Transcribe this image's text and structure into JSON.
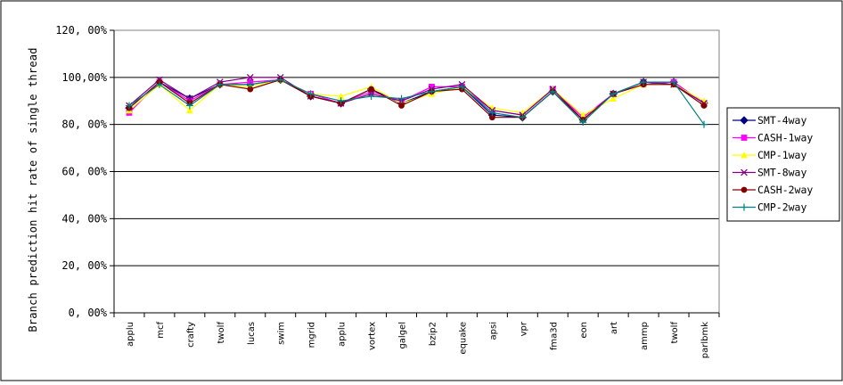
{
  "chart_data": {
    "type": "line",
    "title": "",
    "xlabel": "",
    "ylabel": "Branch prediction hit rate of single thread",
    "ylim": [
      0,
      120
    ],
    "y_ticks": [
      "0, 00%",
      "20, 00%",
      "40, 00%",
      "60, 00%",
      "80, 00%",
      "100,00%",
      "120, 00%"
    ],
    "y_tick_values": [
      0,
      20,
      40,
      60,
      80,
      100,
      120
    ],
    "grid": "horizontal major gridlines",
    "legend_position": "right",
    "categories": [
      "applu",
      "mcf",
      "crafty",
      "twolf",
      "lucas",
      "swim",
      "mgrid",
      "applu",
      "vortex",
      "galgel",
      "bzip2",
      "equake",
      "apsi",
      "vpr",
      "fma3d",
      "eon",
      "art",
      "ammp",
      "twolf",
      "parlbmk"
    ],
    "series": [
      {
        "name": "SMT-4way",
        "color": "#000080",
        "marker": "diamond",
        "values": [
          87,
          98,
          91,
          97,
          97,
          99,
          92,
          89,
          95,
          89,
          94,
          96,
          84,
          83,
          94,
          82,
          93,
          98,
          98,
          89
        ]
      },
      {
        "name": "CASH-1way",
        "color": "#ff00ff",
        "marker": "square",
        "values": [
          85,
          98,
          90,
          97,
          98,
          99,
          93,
          89,
          94,
          90,
          96,
          96,
          86,
          84,
          95,
          83,
          93,
          97,
          98,
          89
        ]
      },
      {
        "name": "CMP-1way",
        "color": "#ffff00",
        "marker": "triangle",
        "values": [
          86,
          97,
          86,
          97,
          96,
          99,
          93,
          92,
          96,
          89,
          93,
          96,
          87,
          85,
          95,
          84,
          91,
          97,
          97,
          90
        ]
      },
      {
        "name": "SMT-8way",
        "color": "#800080",
        "marker": "x",
        "values": [
          88,
          99,
          91,
          98,
          100,
          100,
          92,
          89,
          93,
          90,
          95,
          97,
          86,
          84,
          95,
          82,
          93,
          98,
          97,
          89
        ]
      },
      {
        "name": "CASH-2way",
        "color": "#800000",
        "marker": "circle",
        "values": [
          87,
          98,
          89,
          97,
          95,
          99,
          92,
          89,
          95,
          88,
          94,
          95,
          83,
          83,
          94,
          82,
          93,
          97,
          97,
          88
        ]
      },
      {
        "name": "CMP-2way",
        "color": "#008080",
        "marker": "plus",
        "values": [
          88,
          97,
          88,
          97,
          97,
          99,
          93,
          90,
          92,
          91,
          94,
          96,
          85,
          83,
          94,
          81,
          93,
          98,
          98,
          80
        ]
      }
    ]
  }
}
